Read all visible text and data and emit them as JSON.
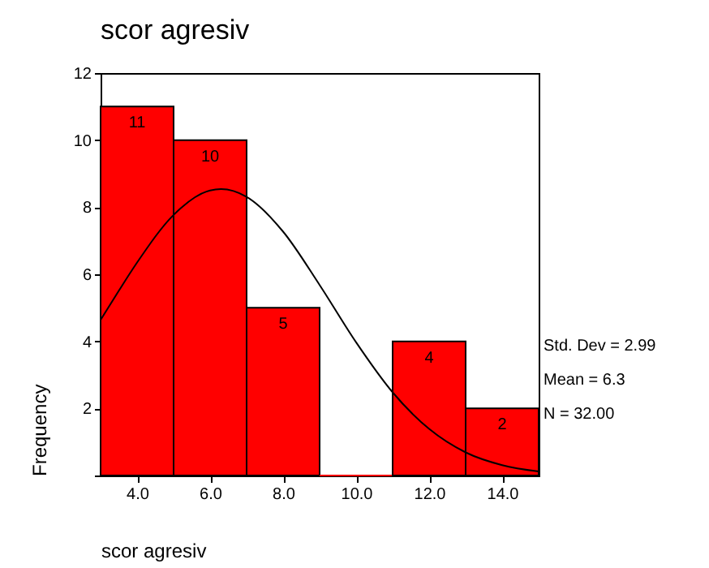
{
  "chart_data": {
    "type": "histogram",
    "title": "scor agresiv",
    "xlabel": "scor agresiv",
    "ylabel": "Frequency",
    "bins": [
      3,
      5,
      7,
      9,
      11,
      13,
      15
    ],
    "series": [
      {
        "type": "histogram",
        "color": "#ff0000",
        "values": [
          11,
          10,
          5,
          0,
          4,
          2
        ],
        "value_labels": [
          "11",
          "10",
          "5",
          null,
          "4",
          "2"
        ]
      },
      {
        "type": "line",
        "color": "#000000",
        "x": [
          3,
          3.5,
          4,
          5,
          6,
          6.3,
          7,
          8,
          9,
          10,
          11,
          12,
          13,
          14,
          15
        ],
        "values": [
          4.64,
          5.51,
          6.35,
          7.77,
          8.5,
          8.54,
          8.31,
          7.27,
          5.68,
          3.97,
          2.48,
          1.39,
          0.69,
          0.31,
          0.12
        ]
      }
    ],
    "xlim": [
      3,
      15
    ],
    "xticks": [
      {
        "value": 4,
        "label": "4.0"
      },
      {
        "value": 6,
        "label": "6.0"
      },
      {
        "value": 8,
        "label": "8.0"
      },
      {
        "value": 10,
        "label": "10.0"
      },
      {
        "value": 12,
        "label": "12.0"
      },
      {
        "value": 14,
        "label": "14.0"
      }
    ],
    "ylim": [
      0,
      12
    ],
    "yticks": [
      {
        "value": 0,
        "label": null
      },
      2,
      4,
      6,
      8,
      10,
      12
    ],
    "annotations": [
      "Std. Dev = 2.99",
      "Mean = 6.3",
      "N = 32.00"
    ],
    "grid": false
  }
}
